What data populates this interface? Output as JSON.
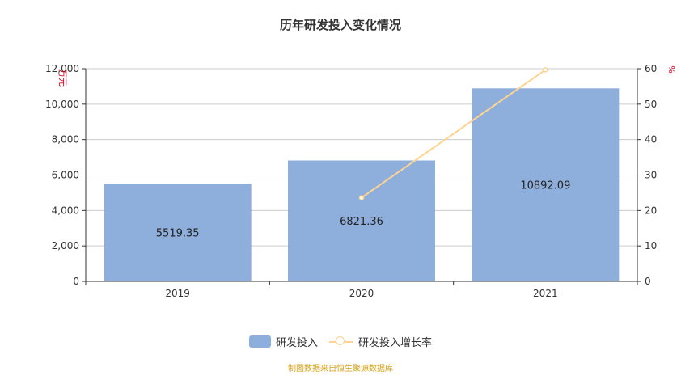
{
  "title": "历年研发投入变化情况",
  "colors": {
    "bar": "#8eaedb",
    "line": "#fdd491",
    "axis_unit": "#e0001b",
    "footer": "#d4a017",
    "grid": "#cccccc"
  },
  "left_axis": {
    "unit": "万元",
    "ticks": [
      "0",
      "2,000",
      "4,000",
      "6,000",
      "8,000",
      "10,000",
      "12,000"
    ]
  },
  "right_axis": {
    "unit": "%",
    "ticks": [
      "0",
      "10",
      "20",
      "30",
      "40",
      "50",
      "60"
    ]
  },
  "legend": {
    "bar_label": "研发投入",
    "line_label": "研发投入增长率"
  },
  "footer": "制图数据来自恒生聚源数据库",
  "bars": [
    {
      "year": "2019",
      "value_label": "5519.35"
    },
    {
      "year": "2020",
      "value_label": "6821.36"
    },
    {
      "year": "2021",
      "value_label": "10892.09"
    }
  ],
  "chart_data": {
    "type": "bar",
    "title": "历年研发投入变化情况",
    "categories": [
      "2019",
      "2020",
      "2021"
    ],
    "series": [
      {
        "name": "研发投入",
        "type": "bar",
        "axis": "left",
        "values": [
          5519.35,
          6821.36,
          10892.09
        ]
      },
      {
        "name": "研发投入增长率",
        "type": "line",
        "axis": "right",
        "values": [
          null,
          23.59,
          59.68
        ]
      }
    ],
    "xlabel": "",
    "ylabel": "万元",
    "ylabel_right": "%",
    "ylim": [
      0,
      12000
    ],
    "ylim_right": [
      0,
      60
    ],
    "grid": true,
    "legend_position": "bottom"
  }
}
